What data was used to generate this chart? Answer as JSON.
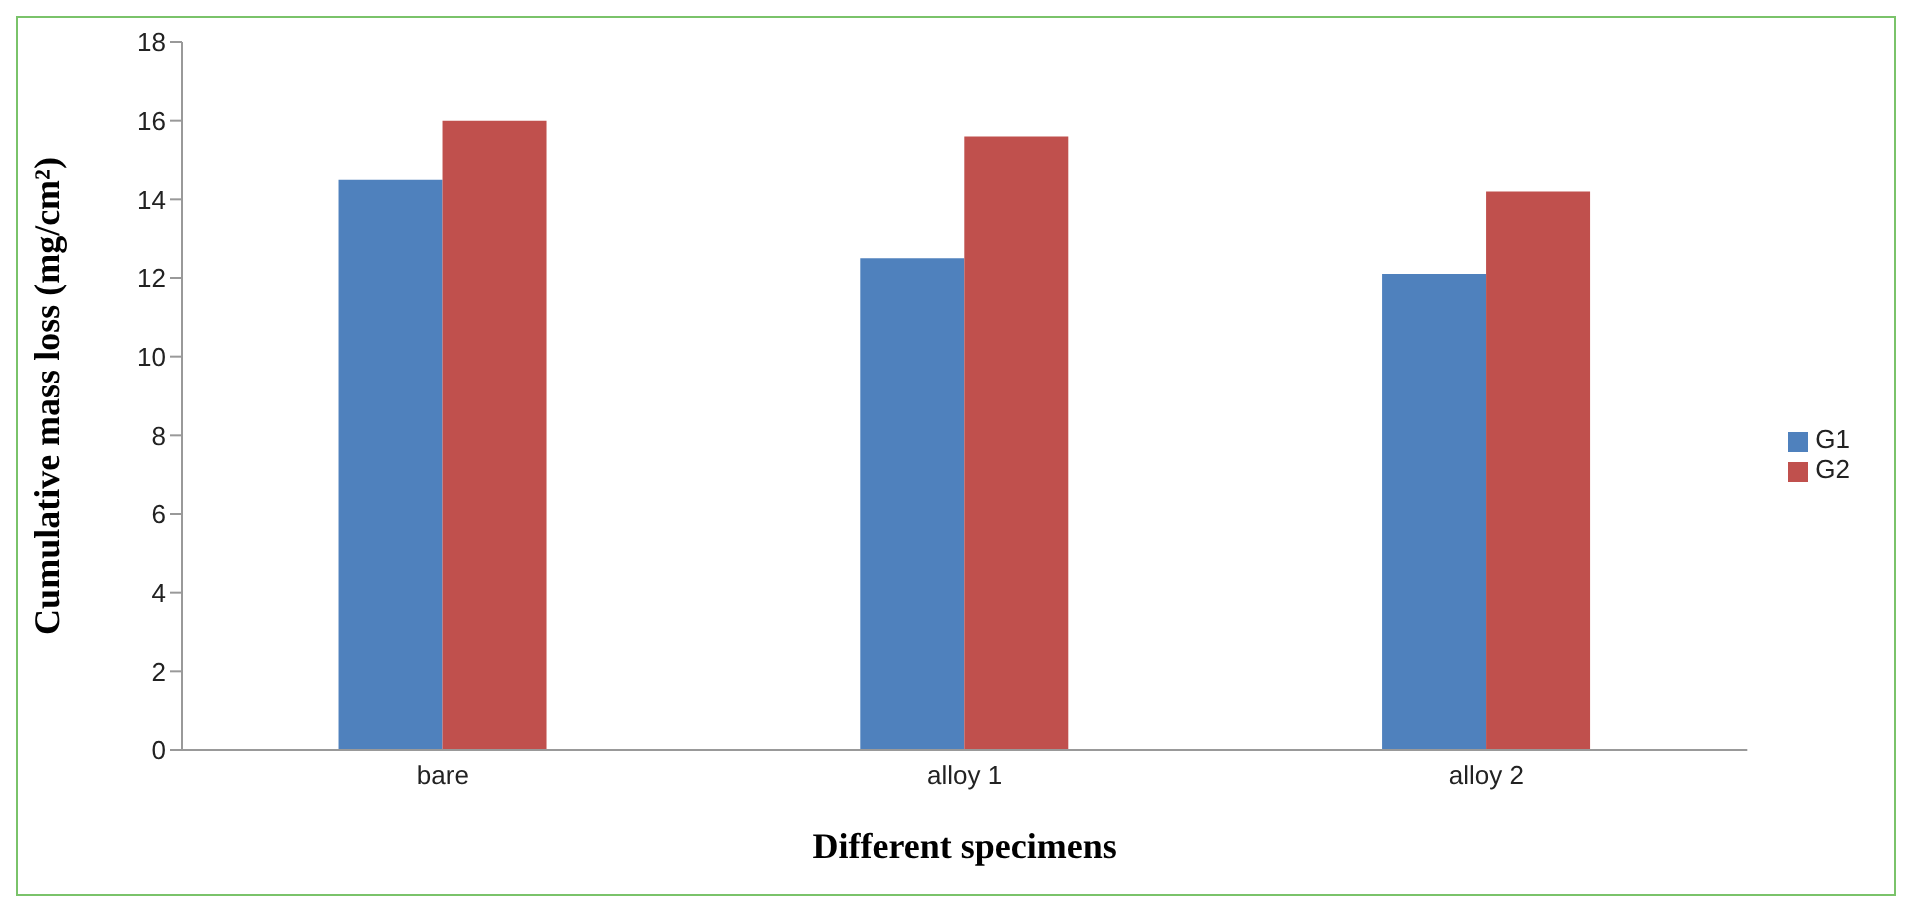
{
  "chart_data": {
    "type": "bar",
    "xlabel": "Different specimens",
    "ylabel": "Cumulative mass loss (mg/cm²)",
    "categories": [
      "bare",
      "alloy 1",
      "alloy 2"
    ],
    "series": [
      {
        "name": "G1",
        "color": "#4f81bd",
        "values": [
          14.5,
          12.5,
          12.1
        ]
      },
      {
        "name": "G2",
        "color": "#c0504d",
        "values": [
          16.0,
          15.6,
          14.2
        ]
      }
    ],
    "ylim": [
      0,
      18
    ],
    "yticks": [
      0,
      2,
      4,
      6,
      8,
      10,
      12,
      14,
      16,
      18
    ],
    "grid": false,
    "legend": "right"
  }
}
